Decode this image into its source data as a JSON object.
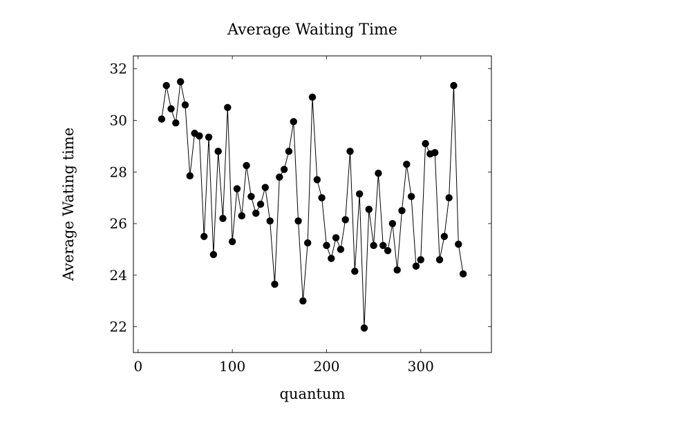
{
  "chart_data": {
    "type": "line",
    "title": "Average Waiting Time",
    "xlabel": "quantum",
    "ylabel": "Average Wating time",
    "xlim": [
      -5,
      375
    ],
    "ylim": [
      21,
      32.5
    ],
    "xticks": [
      0,
      100,
      200,
      300
    ],
    "yticks": [
      22,
      24,
      26,
      28,
      30,
      32
    ],
    "grid": false,
    "marker": "circle",
    "line_color": "#000000",
    "marker_color": "#000000",
    "series": [
      {
        "x": [
          25,
          30,
          35,
          40,
          45,
          50,
          55,
          60,
          65,
          70,
          75,
          80,
          85,
          90,
          95,
          100,
          105,
          110,
          115,
          120,
          125,
          130,
          135,
          140,
          145,
          150,
          155,
          160,
          165,
          170,
          175,
          180,
          185,
          190,
          195,
          200,
          205,
          210,
          215,
          220,
          225,
          230,
          235,
          240,
          245,
          250,
          255,
          260,
          265,
          270,
          275,
          280,
          285,
          290,
          295,
          300,
          305,
          310,
          315,
          320,
          325,
          330,
          335,
          340,
          345
        ],
        "y": [
          30.05,
          31.35,
          30.45,
          29.9,
          31.5,
          30.6,
          27.85,
          29.5,
          29.4,
          25.5,
          29.35,
          24.8,
          28.8,
          26.2,
          30.5,
          25.3,
          27.35,
          26.3,
          28.25,
          27.05,
          26.4,
          26.75,
          27.4,
          26.1,
          23.65,
          27.8,
          28.1,
          28.8,
          29.95,
          26.1,
          23.0,
          25.25,
          30.9,
          27.7,
          27.0,
          25.15,
          24.65,
          25.45,
          25.0,
          26.15,
          28.8,
          24.15,
          27.15,
          21.95,
          26.55,
          25.15,
          27.95,
          25.15,
          24.95,
          26.0,
          24.2,
          26.5,
          28.3,
          27.05,
          24.35,
          24.6,
          29.1,
          28.7,
          28.75,
          24.6,
          25.5,
          27.0,
          31.35,
          25.2,
          24.05
        ]
      }
    ]
  }
}
